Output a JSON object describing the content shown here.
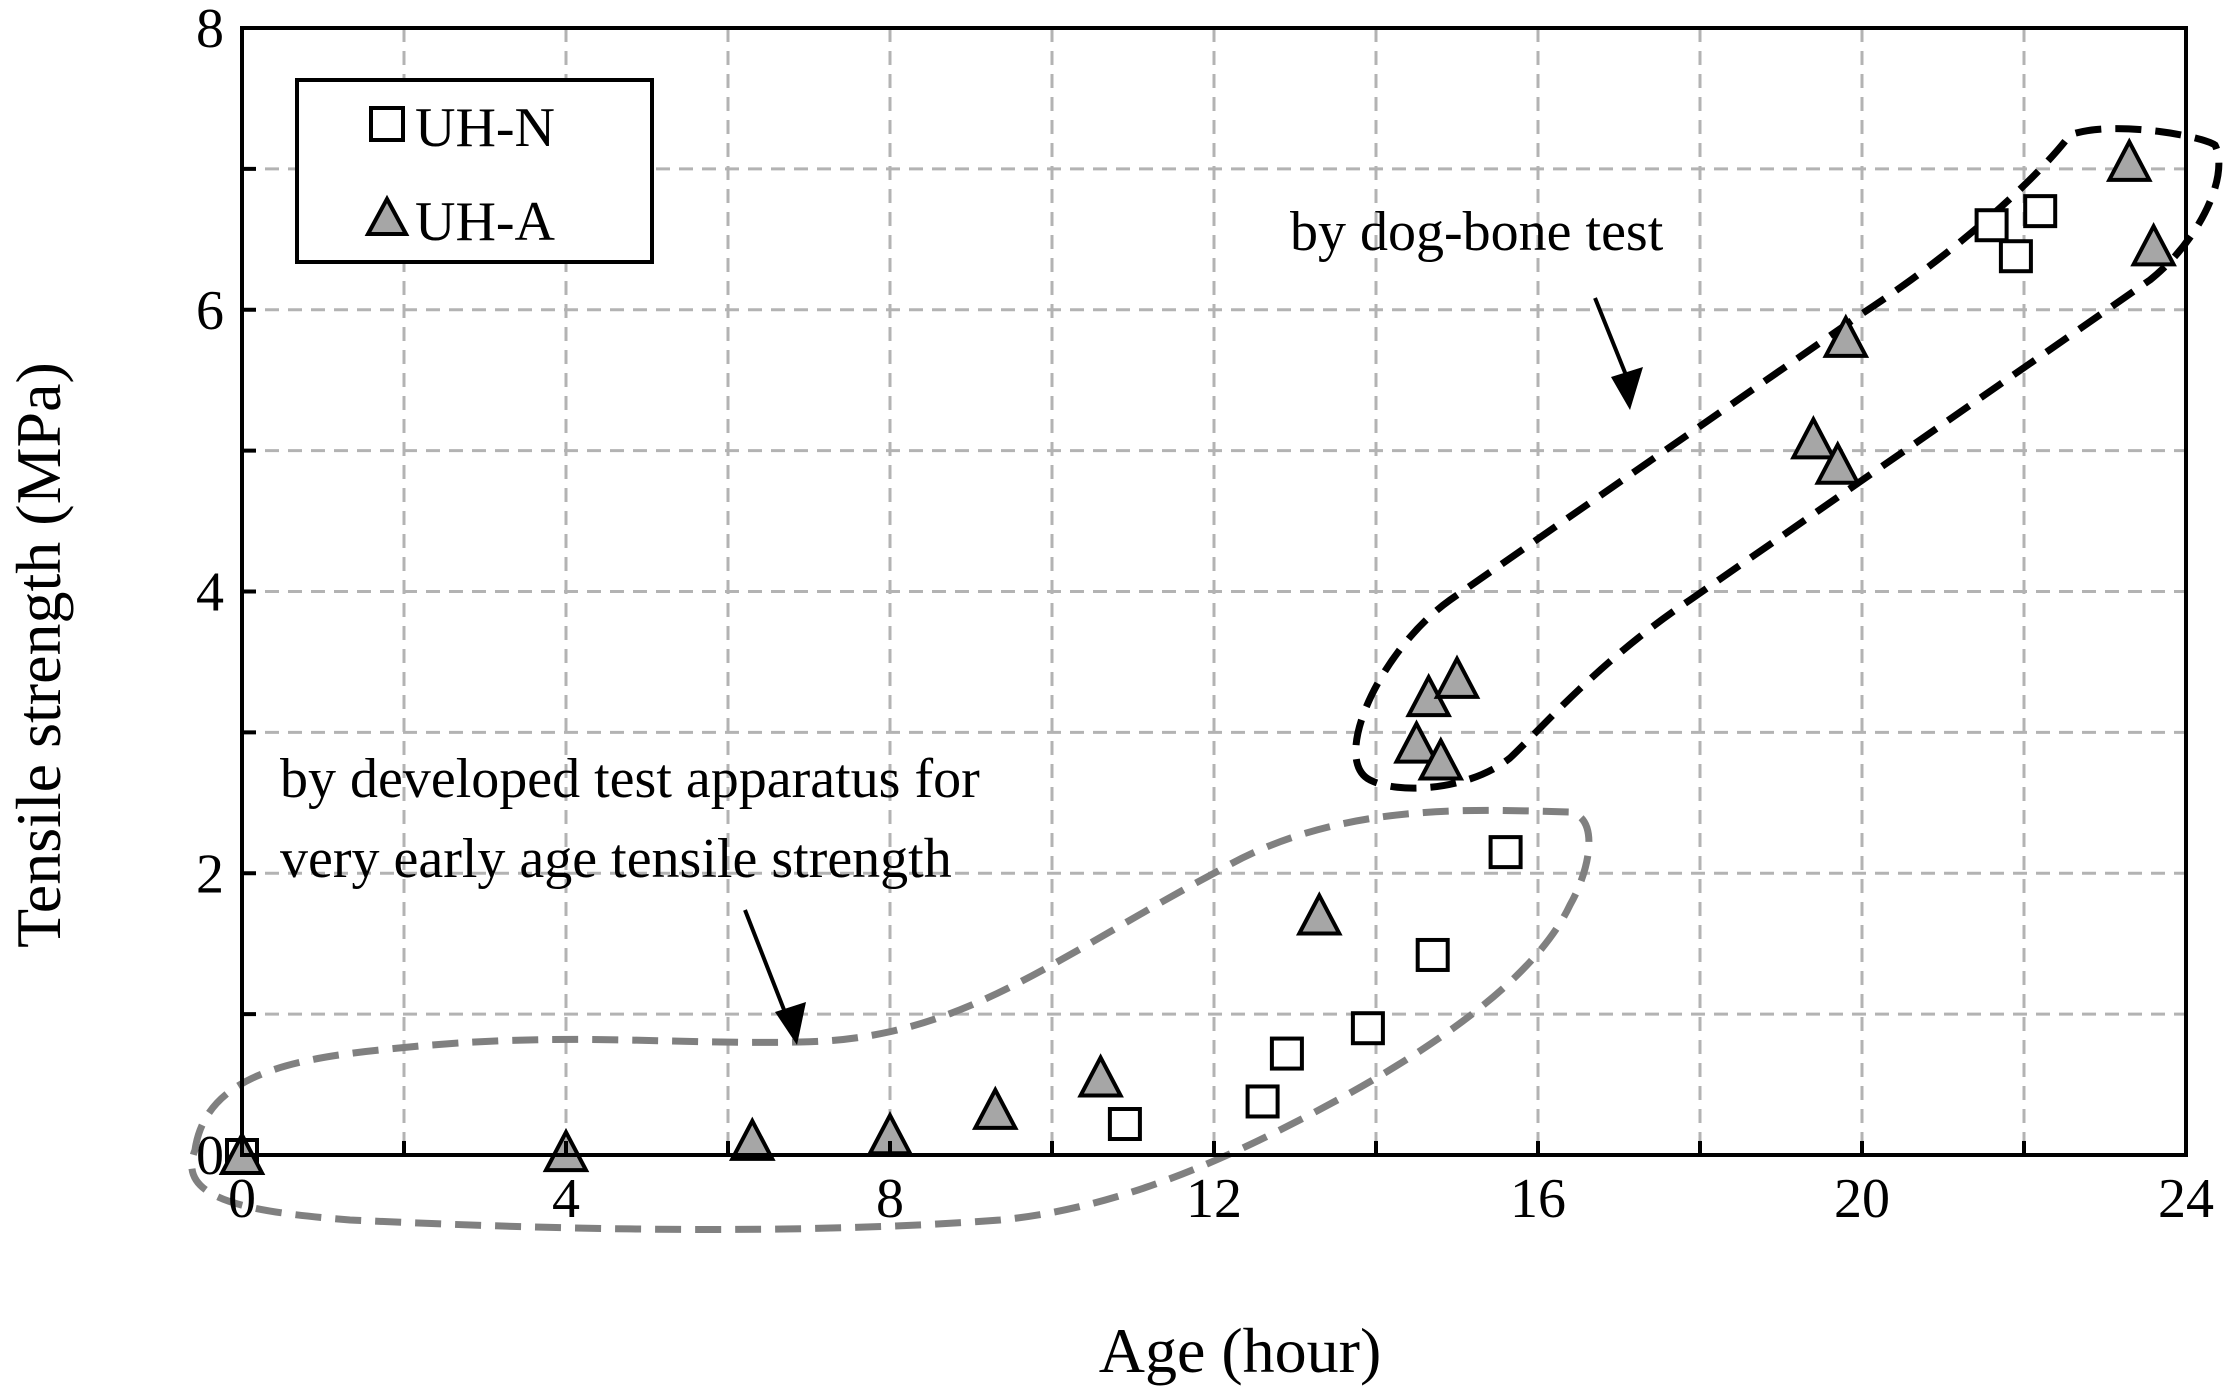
{
  "chart_data": {
    "type": "scatter",
    "xlabel": "Age (hour)",
    "ylabel": "Tensile strength (MPa)",
    "xlim": [
      0,
      24
    ],
    "ylim": [
      0,
      8
    ],
    "x_ticks": [
      0,
      4,
      8,
      12,
      16,
      20,
      24
    ],
    "y_ticks": [
      0,
      2,
      4,
      6,
      8
    ],
    "grid": true,
    "grid_x_step": 2,
    "grid_y_step": 1,
    "legend_position": "top-left",
    "series": [
      {
        "name": "UH-N",
        "marker": "square",
        "fill": "#ffffff",
        "points": [
          [
            0,
            0
          ],
          [
            10.9,
            0.22
          ],
          [
            12.6,
            0.38
          ],
          [
            12.9,
            0.72
          ],
          [
            13.9,
            0.9
          ],
          [
            14.7,
            1.42
          ],
          [
            15.6,
            2.15
          ],
          [
            21.6,
            6.6
          ],
          [
            21.9,
            6.38
          ],
          [
            22.2,
            6.7
          ]
        ]
      },
      {
        "name": "UH-A",
        "marker": "triangle",
        "fill": "#a6a6a6",
        "points": [
          [
            0,
            0
          ],
          [
            4.0,
            0.02
          ],
          [
            6.3,
            0.1
          ],
          [
            8.0,
            0.14
          ],
          [
            9.3,
            0.32
          ],
          [
            10.6,
            0.55
          ],
          [
            13.3,
            1.7
          ],
          [
            14.5,
            2.92
          ],
          [
            14.65,
            3.25
          ],
          [
            14.8,
            2.8
          ],
          [
            15.0,
            3.38
          ],
          [
            19.4,
            5.08
          ],
          [
            19.7,
            4.9
          ],
          [
            19.8,
            5.8
          ],
          [
            23.3,
            7.05
          ],
          [
            23.6,
            6.45
          ]
        ]
      }
    ],
    "annotations": [
      {
        "text": "by dog-bone test",
        "color": "#000000"
      },
      {
        "lines": [
          "by developed test apparatus for",
          "very early age tensile strength"
        ],
        "color": "#808080"
      }
    ]
  }
}
